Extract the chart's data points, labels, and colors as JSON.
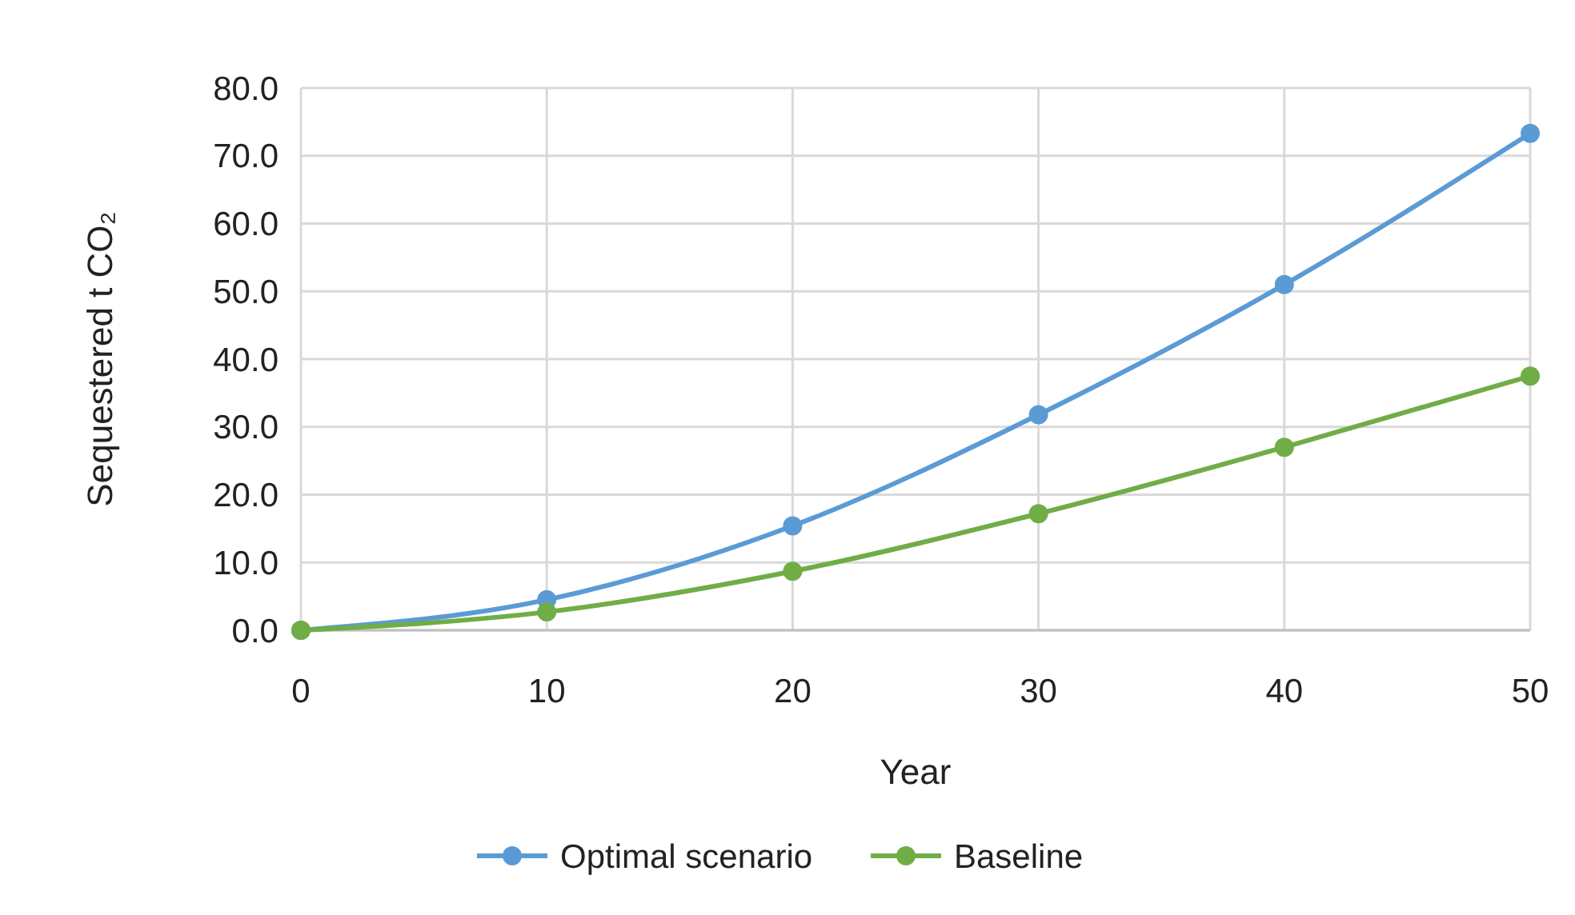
{
  "chart_data": {
    "type": "line",
    "xlabel": "Year",
    "ylabel": "Sequestered t CO₂",
    "x": [
      0,
      10,
      20,
      30,
      40,
      50
    ],
    "series": [
      {
        "name": "Optimal scenario",
        "color": "#5b9bd5",
        "values": [
          0,
          4.5,
          15.4,
          31.8,
          51.0,
          73.3
        ]
      },
      {
        "name": "Baseline",
        "color": "#70ad47",
        "values": [
          0,
          2.7,
          8.7,
          17.2,
          27.0,
          37.5
        ]
      }
    ],
    "xlim": [
      0,
      50
    ],
    "xticks": [
      0,
      10,
      20,
      30,
      40,
      50
    ],
    "ylim": [
      0,
      80
    ],
    "yticks": [
      {
        "value": 0,
        "label": "0.0"
      },
      {
        "value": 10,
        "label": "10.0"
      },
      {
        "value": 20,
        "label": "20.0"
      },
      {
        "value": 30,
        "label": "30.0"
      },
      {
        "value": 40,
        "label": "40.0"
      },
      {
        "value": 50,
        "label": "50.0"
      },
      {
        "value": 60,
        "label": "60.0"
      },
      {
        "value": 70,
        "label": "70.0"
      },
      {
        "value": 80,
        "label": "80.0"
      }
    ],
    "grid": true,
    "legend": "bottom",
    "marker": "circle",
    "line_style": "solid"
  }
}
